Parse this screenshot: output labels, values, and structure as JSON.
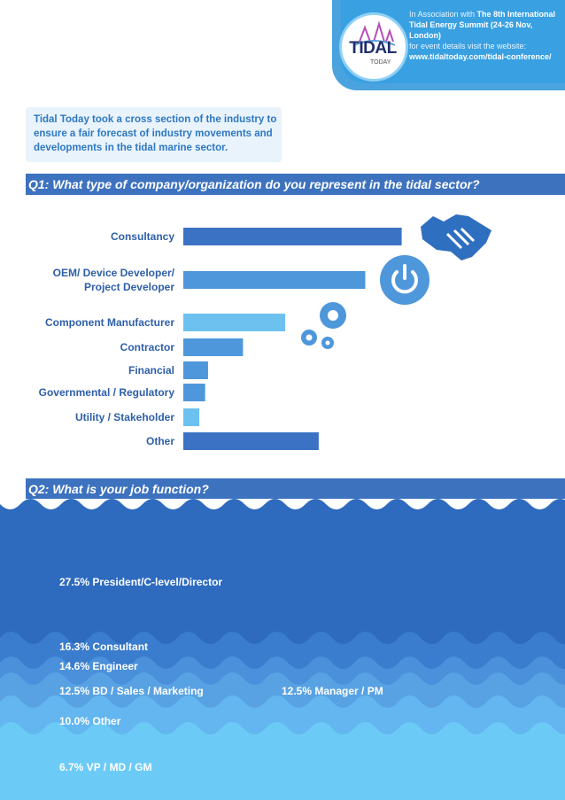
{
  "header": {
    "assoc_prefix": "In Association with ",
    "event_name": "The 8th International Tidal Energy Summit (24-26 Nov, London)",
    "details_prefix": "for event details visit the website:",
    "url": "www.tidaltoday.com/tidal-conference/",
    "logo_text": "TIDAL",
    "logo_sub": "TODAY"
  },
  "intro": "Tidal Today took a cross section of the industry to ensure a fair forecast of industry movements and developments in the tidal marine sector.",
  "q1": {
    "title": "Q1: What type of company/organization do you represent in the tidal sector?"
  },
  "q2": {
    "title": "Q2: What is your job function?"
  },
  "colors": {
    "header_bar": "#3d72bf",
    "badge": "#39a0e2",
    "label": "#2e5fa8",
    "bar_dark": "#3b72c4",
    "bar_mid": "#4e97db",
    "bar_light": "#6cc1ee"
  },
  "icons": [
    "handshake-icon",
    "power-icon",
    "gears-icon"
  ],
  "chart_data": [
    {
      "type": "bar",
      "orientation": "horizontal",
      "categories": [
        "Consultancy",
        "OEM/ Device Developer/ Project Developer",
        "Component Manufacturer",
        "Contractor",
        "Financial",
        "Governmental / Regulatory",
        "Utility / Stakeholder",
        "Other"
      ],
      "values": [
        30,
        25,
        14,
        8.2,
        3.4,
        3,
        2.2,
        18.6
      ],
      "xlim": [
        0,
        32
      ],
      "grid": false
    },
    {
      "type": "bar",
      "categories": [
        "President/C-level/Director",
        "Consultant",
        "Engineer",
        "BD / Sales / Marketing",
        "Manager / PM",
        "Other",
        "VP / MD / GM"
      ],
      "values": [
        27.5,
        16.3,
        14.6,
        12.5,
        12.5,
        10.0,
        6.7
      ],
      "labels": [
        "27.5% President/C-level/Director",
        "16.3% Consultant",
        "14.6% Engineer",
        "12.5% BD / Sales / Marketing",
        "12.5% Manager / PM",
        "10.0% Other",
        "6.7% VP / MD / GM"
      ]
    }
  ]
}
